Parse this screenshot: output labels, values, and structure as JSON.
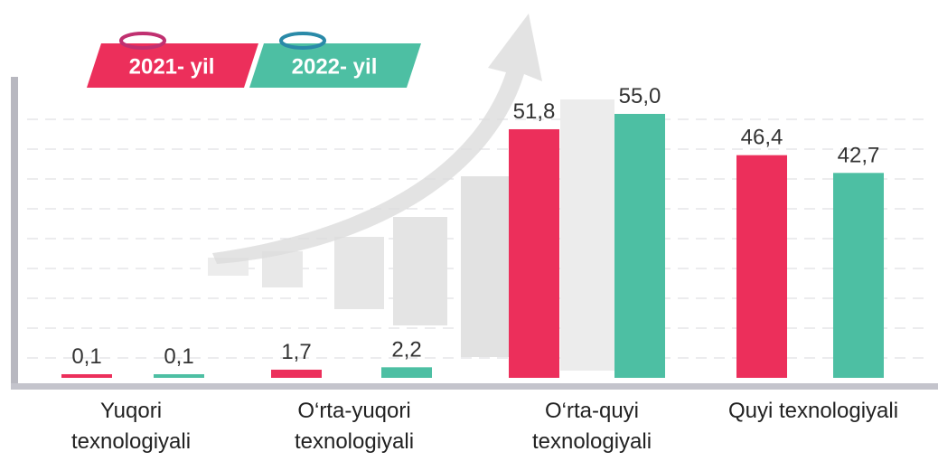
{
  "chart_data": {
    "type": "bar",
    "categories": [
      "Yuqori texnologiyali",
      "O‘rta-yuqori texnologiyali",
      "O‘rta-quyi texnologiyali",
      "Quyi texnologiyali"
    ],
    "series": [
      {
        "name": "2021- yil",
        "color": "#ec2f5b",
        "values": [
          0.1,
          1.7,
          51.8,
          46.4
        ],
        "value_labels": [
          "0,1",
          "1,7",
          "51,8",
          "46,4"
        ]
      },
      {
        "name": "2022- yil",
        "color": "#4dbfa3",
        "values": [
          0.1,
          2.2,
          55.0,
          42.7
        ],
        "value_labels": [
          "0,1",
          "2,2",
          "55,0",
          "42,7"
        ]
      }
    ]
  }
}
